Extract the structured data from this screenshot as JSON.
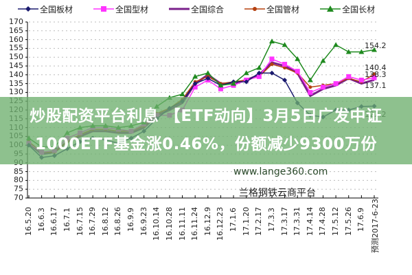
{
  "legend": [
    {
      "name": "全国板材",
      "color": "#1a1a6e",
      "marker": "diamond"
    },
    {
      "name": "全国型材",
      "color": "#ff33ff",
      "marker": "square"
    },
    {
      "name": "全国综合",
      "color": "#7a1f8a",
      "marker": "none"
    },
    {
      "name": "全国管材",
      "color": "#b5400f",
      "marker": "circle"
    },
    {
      "name": "全国长材",
      "color": "#1f8a1f",
      "marker": "triangle"
    }
  ],
  "overlay": {
    "title": "炒股配资平台利息 【ETF动向】3月5日广发中证1000ETF基金涨0.46%，份额减少9300万份"
  },
  "watermark": {
    "url": "www.lange360.com",
    "name": "兰格钢铁云商平台"
  },
  "end_labels": {
    "changcai": "154.2",
    "guancai": "140.4",
    "xingcai": "138.3",
    "zonghe": "137.1",
    "bancai": "122.2"
  },
  "chart_data": {
    "type": "line",
    "title": "",
    "xlabel": "",
    "ylabel": "",
    "ylim": [
      70,
      170
    ],
    "yticks": [
      70,
      75,
      80,
      85,
      90,
      95,
      100,
      105,
      110,
      115,
      120,
      125,
      130,
      135,
      140,
      145,
      150,
      155,
      160,
      165,
      170
    ],
    "grid": "horizontal dotted",
    "legend_position": "top",
    "x_tick_labels": [
      "16.5.20",
      "16.6.3",
      "16.6.17",
      "16.7.1",
      "16.7.15",
      "16.7.29",
      "16.8.12",
      "16.8.26",
      "16.9.9",
      "16.9.23",
      "16.10.14",
      "16.10.28",
      "16.11.11",
      "16.11.24",
      "16.12.9",
      "16.12.23",
      "17.1.6",
      "17.1.20",
      "17.2.17",
      "17.3.3",
      "17.3.17",
      "17.3.31",
      "17.4.14",
      "17.4.28",
      "17.5.12",
      "17.5.26",
      "17.6.9",
      "预测2017-6-23"
    ],
    "x": [
      "16.5.20",
      "16.6.3",
      "16.6.17",
      "16.7.1",
      "16.7.15",
      "16.7.29",
      "16.8.12",
      "16.8.26",
      "16.9.9",
      "16.9.23",
      "16.10.14",
      "16.10.28",
      "16.11.11",
      "16.11.24",
      "16.12.9",
      "16.12.23",
      "17.1.6",
      "17.1.20",
      "17.2.17",
      "17.3.3",
      "17.3.17",
      "17.3.31",
      "17.4.14",
      "17.4.28",
      "17.5.12",
      "17.5.26",
      "17.6.9",
      "预测2017-6-23"
    ],
    "series": [
      {
        "name": "全国板材",
        "values": [
          100,
          93,
          94,
          98,
          102,
          104,
          103,
          101,
          104,
          108,
          115,
          121,
          125,
          135,
          138,
          134,
          136,
          136,
          141,
          141,
          137,
          124,
          117,
          116,
          120,
          120,
          122,
          122.2
        ]
      },
      {
        "name": "全国型材",
        "values": [
          101,
          96,
          97,
          104,
          107,
          110,
          110,
          109,
          108,
          112,
          117,
          117,
          120,
          133,
          137,
          132,
          134,
          137,
          139,
          149,
          146,
          142,
          130,
          133,
          135,
          139,
          137,
          138.3
        ]
      },
      {
        "name": "全国综合",
        "values": [
          101,
          95,
          96,
          102,
          105,
          108,
          108,
          107,
          107,
          110,
          117,
          120,
          124,
          135,
          140,
          135,
          135,
          137,
          140,
          147,
          145,
          141,
          128,
          132,
          134,
          138,
          135,
          137.1
        ]
      },
      {
        "name": "全国管材",
        "values": [
          102,
          96,
          96,
          102,
          106,
          109,
          109,
          108,
          108,
          111,
          118,
          121,
          126,
          136,
          139,
          135,
          136,
          137,
          139,
          146,
          144,
          141,
          133,
          134,
          135,
          138,
          136,
          140.4
        ]
      },
      {
        "name": "全国长材",
        "values": [
          104,
          99,
          99,
          107,
          110,
          111,
          111,
          110,
          111,
          113,
          122,
          127,
          129,
          139,
          141,
          134,
          135,
          141,
          144,
          159,
          157,
          149,
          137,
          148,
          157,
          153,
          153,
          154.2
        ]
      }
    ]
  }
}
